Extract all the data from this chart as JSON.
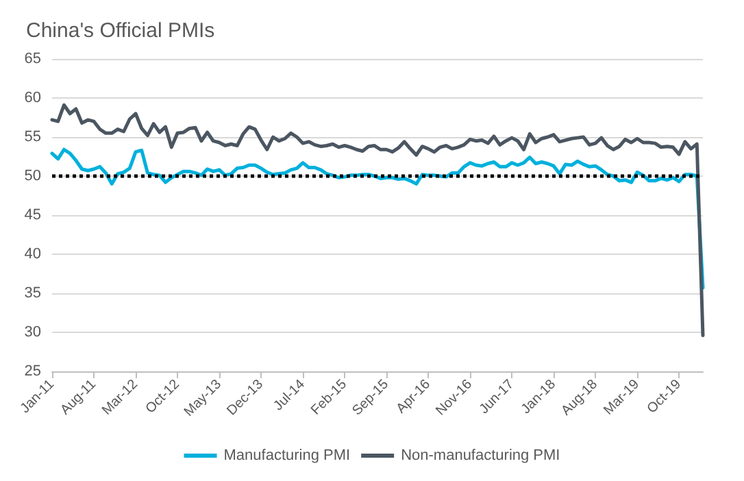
{
  "chart_data": {
    "type": "line",
    "title": "China's Official PMIs",
    "categories": [
      "Jan-11",
      null,
      null,
      null,
      null,
      null,
      null,
      "Aug-11",
      null,
      null,
      null,
      null,
      null,
      null,
      "Mar-12",
      null,
      null,
      null,
      null,
      null,
      null,
      "Oct-12",
      null,
      null,
      null,
      null,
      null,
      null,
      "May-13",
      null,
      null,
      null,
      null,
      null,
      null,
      "Dec-13",
      null,
      null,
      null,
      null,
      null,
      null,
      "Jul-14",
      null,
      null,
      null,
      null,
      null,
      null,
      "Feb-15",
      null,
      null,
      null,
      null,
      null,
      null,
      "Sep-15",
      null,
      null,
      null,
      null,
      null,
      null,
      "Apr-16",
      null,
      null,
      null,
      null,
      null,
      null,
      "Nov-16",
      null,
      null,
      null,
      null,
      null,
      null,
      "Jun-17",
      null,
      null,
      null,
      null,
      null,
      null,
      "Jan-18",
      null,
      null,
      null,
      null,
      null,
      null,
      "Aug-18",
      null,
      null,
      null,
      null,
      null,
      null,
      "Mar-19",
      null,
      null,
      null,
      null,
      null,
      null,
      "Oct-19",
      null,
      null,
      null,
      null
    ],
    "series": [
      {
        "name": "Manufacturing PMI",
        "color": "#00b0dc",
        "values": [
          52.9,
          52.2,
          53.4,
          52.9,
          52.0,
          50.9,
          50.7,
          50.9,
          51.2,
          50.4,
          49.0,
          50.3,
          50.5,
          51.0,
          53.1,
          53.3,
          50.4,
          50.2,
          50.1,
          49.2,
          49.8,
          50.2,
          50.6,
          50.6,
          50.4,
          50.1,
          50.9,
          50.6,
          50.8,
          50.1,
          50.3,
          51.0,
          51.1,
          51.4,
          51.4,
          51.0,
          50.5,
          50.2,
          50.3,
          50.4,
          50.8,
          51.0,
          51.7,
          51.1,
          51.1,
          50.8,
          50.3,
          50.1,
          49.8,
          49.9,
          50.1,
          50.1,
          50.2,
          50.2,
          50.0,
          49.7,
          49.8,
          49.8,
          49.6,
          49.7,
          49.4,
          49.0,
          50.2,
          50.1,
          50.1,
          50.0,
          49.9,
          50.4,
          50.4,
          51.2,
          51.7,
          51.4,
          51.3,
          51.6,
          51.8,
          51.2,
          51.2,
          51.7,
          51.4,
          51.7,
          52.4,
          51.6,
          51.8,
          51.6,
          51.3,
          50.3,
          51.5,
          51.4,
          51.9,
          51.5,
          51.2,
          51.3,
          50.8,
          50.2,
          50.0,
          49.4,
          49.5,
          49.2,
          50.5,
          50.1,
          49.4,
          49.4,
          49.7,
          49.5,
          49.8,
          49.3,
          50.2,
          50.2,
          50.0,
          35.7
        ]
      },
      {
        "name": "Non-manufacturing PMI",
        "color": "#4b5661",
        "values": [
          57.2,
          57.0,
          59.1,
          58.0,
          58.6,
          56.8,
          57.2,
          57.0,
          56.0,
          55.5,
          55.5,
          56.0,
          55.7,
          57.3,
          58.0,
          56.1,
          55.2,
          56.7,
          55.6,
          56.3,
          53.7,
          55.5,
          55.6,
          56.1,
          56.2,
          54.5,
          55.6,
          54.5,
          54.3,
          53.9,
          54.1,
          53.9,
          55.4,
          56.3,
          56.0,
          54.6,
          53.4,
          55.0,
          54.5,
          54.8,
          55.5,
          55.0,
          54.2,
          54.4,
          54.0,
          53.8,
          53.9,
          54.1,
          53.7,
          53.9,
          53.7,
          53.4,
          53.2,
          53.8,
          53.9,
          53.4,
          53.4,
          53.1,
          53.6,
          54.4,
          53.5,
          52.7,
          53.8,
          53.5,
          53.1,
          53.7,
          53.9,
          53.5,
          53.7,
          54.0,
          54.7,
          54.5,
          54.6,
          54.2,
          55.1,
          54.0,
          54.5,
          54.9,
          54.5,
          53.4,
          55.4,
          54.3,
          54.8,
          55.0,
          55.3,
          54.4,
          54.6,
          54.8,
          54.9,
          55.0,
          54.0,
          54.2,
          54.9,
          53.9,
          53.4,
          53.8,
          54.7,
          54.3,
          54.8,
          54.3,
          54.3,
          54.2,
          53.7,
          53.8,
          53.7,
          52.8,
          54.4,
          53.5,
          54.1,
          29.6
        ]
      }
    ],
    "ylim": [
      25,
      65
    ],
    "yticks": [
      25,
      30,
      35,
      40,
      45,
      50,
      55,
      60,
      65
    ],
    "ref_lines": [
      {
        "axis": "y",
        "value": 50,
        "color": "#000000",
        "line_style": "dotted"
      }
    ],
    "grid": "y",
    "legend": "bottom",
    "marker": "none",
    "line_style": "solid"
  }
}
